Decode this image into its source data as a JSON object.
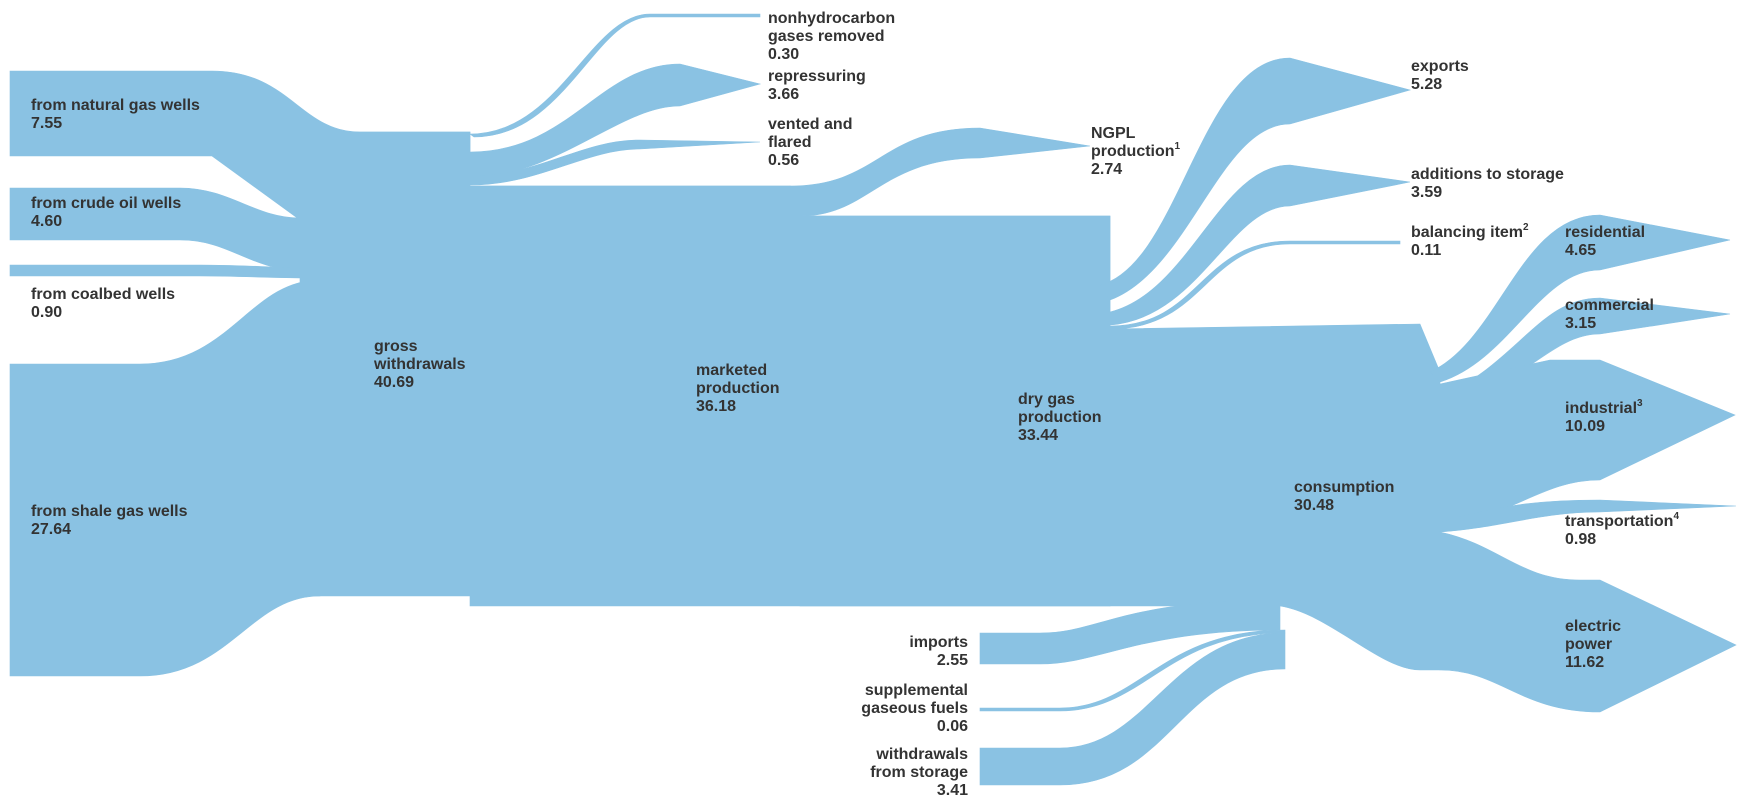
{
  "colors": {
    "flow": "#8ac2e3",
    "text": "#333333"
  },
  "nodes": {
    "natural_gas_wells": {
      "label": "from natural gas wells",
      "value": "7.55"
    },
    "crude_oil_wells": {
      "label": "from crude oil wells",
      "value": "4.60"
    },
    "coalbed_wells": {
      "label": "from coalbed wells",
      "value": "0.90"
    },
    "shale_gas_wells": {
      "label": "from shale gas wells",
      "value": "27.64"
    },
    "gross_withdrawals": {
      "label_line1": "gross",
      "label_line2": "withdrawals",
      "value": "40.69"
    },
    "nonhydrocarbon": {
      "label_line1": "nonhydrocarbon",
      "label_line2": "gases removed",
      "value": "0.30"
    },
    "repressuring": {
      "label": "repressuring",
      "value": "3.66"
    },
    "vented_flared": {
      "label_line1": "vented and",
      "label_line2": "flared",
      "value": "0.56"
    },
    "marketed_production": {
      "label_line1": "marketed",
      "label_line2": "production",
      "value": "36.18"
    },
    "ngpl_production": {
      "label_line1": "NGPL",
      "label_line2": "production",
      "footnote": "1",
      "value": "2.74"
    },
    "dry_gas_production": {
      "label_line1": "dry gas",
      "label_line2": "production",
      "value": "33.44"
    },
    "imports": {
      "label": "imports",
      "value": "2.55"
    },
    "supplemental": {
      "label_line1": "supplemental",
      "label_line2": "gaseous fuels",
      "value": "0.06"
    },
    "withdrawals_storage": {
      "label_line1": "withdrawals",
      "label_line2": "from storage",
      "value": "3.41"
    },
    "exports": {
      "label": "exports",
      "value": "5.28"
    },
    "additions_storage": {
      "label": "additions to storage",
      "value": "3.59"
    },
    "balancing_item": {
      "label": "balancing item",
      "footnote": "2",
      "value": "0.11"
    },
    "consumption": {
      "label": "consumption",
      "value": "30.48"
    },
    "residential": {
      "label": "residential",
      "value": "4.65"
    },
    "commercial": {
      "label": "commercial",
      "value": "3.15"
    },
    "industrial": {
      "label": "industrial",
      "footnote": "3",
      "value": "10.09"
    },
    "transportation": {
      "label": "transportation",
      "footnote": "4",
      "value": "0.98"
    },
    "electric_power": {
      "label_line1": "electric",
      "label_line2": "power",
      "value": "11.62"
    }
  }
}
